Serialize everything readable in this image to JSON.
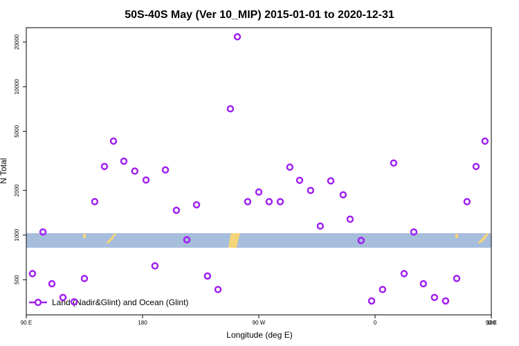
{
  "chart_data": {
    "type": "scatter",
    "title": "50S-40S May (Ver 10_MIP)   2015-01-01 to 2020-12-31",
    "x_label": "Longitude (deg E)",
    "y_label": "N Total",
    "log_y": true,
    "grid": false,
    "legend_position": "lower left",
    "xlim": [
      90,
      450
    ],
    "ylim": [
      290,
      25000
    ],
    "xticks": [
      {
        "value": 90,
        "label": "90 E"
      },
      180,
      {
        "value": 270,
        "label": "90 W"
      },
      {
        "value": 360,
        "label": "0"
      },
      {
        "value": 450,
        "label": "90 E"
      },
      {
        "value": 540,
        "label": "180"
      }
    ],
    "yticks": [
      500,
      1000,
      2000,
      5000,
      10000,
      20000
    ],
    "series": [
      {
        "name": "Land (Nadir&Glint) and Ocean (Glint)",
        "color": "#a020f0",
        "x": [
          94.8,
          102.9,
          109.8,
          118.4,
          127,
          135,
          143,
          150.5,
          157.5,
          165.5,
          174,
          182.7,
          189.6,
          197.7,
          206.2,
          214.3,
          221.8,
          230.3,
          238.4,
          248,
          253.4,
          261.4,
          270,
          278,
          286.6,
          294,
          301.6,
          310.1,
          317.6,
          325.7,
          335.3,
          340.7,
          349.2,
          357.3,
          365.8,
          374.4,
          382.5,
          390,
          397.4,
          406,
          414.6,
          423.2,
          431.2,
          438.2,
          445.1
        ],
        "values": [
          550,
          1050,
          470,
          380,
          355,
          510,
          1680,
          2900,
          4300,
          3150,
          2700,
          2350,
          620,
          2750,
          1470,
          930,
          1600,
          530,
          430,
          7100,
          21700,
          1680,
          1950,
          1680,
          1680,
          2870,
          2340,
          2000,
          1150,
          2320,
          1870,
          1280,
          920,
          360,
          430,
          3060,
          550,
          1050,
          470,
          380,
          360,
          510,
          1680,
          2900,
          4300
        ]
      }
    ]
  }
}
